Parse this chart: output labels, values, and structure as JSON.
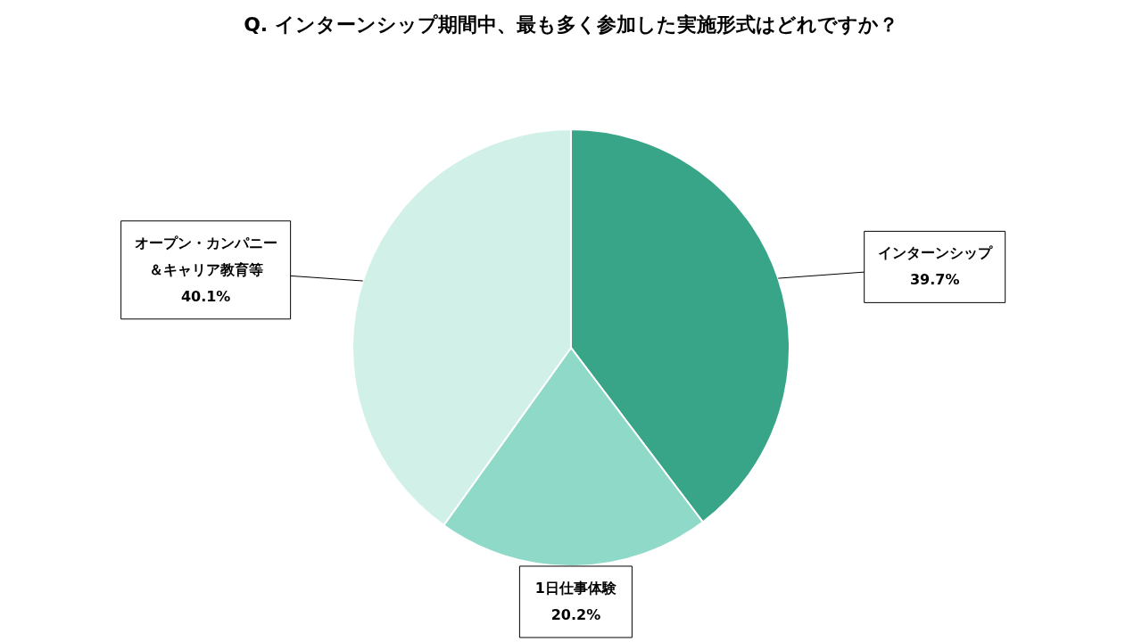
{
  "chart_data": {
    "type": "pie",
    "title": "Q. インターンシップ期間中、最も多く参加した実施形式はどれですか？",
    "categories": [
      "インターンシップ",
      "1日仕事体験",
      "オープン・カンパニー＆キャリア教育等"
    ],
    "values": [
      39.7,
      20.2,
      40.1
    ],
    "value_labels": [
      "39.7%",
      "20.2%",
      "40.1%"
    ],
    "colors": [
      "#38a488",
      "#8fd9c8",
      "#d1f0e7"
    ],
    "legend": false
  }
}
